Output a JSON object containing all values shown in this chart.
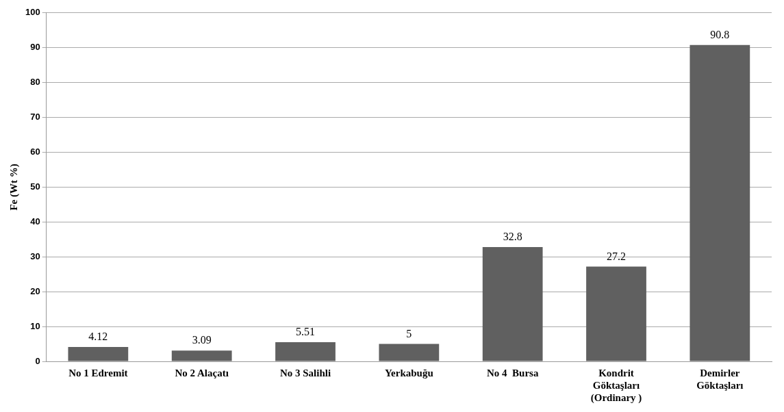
{
  "chart_data": {
    "type": "bar",
    "ylabel": "Fe (Wt %)",
    "categories": [
      "No 1 Edremit",
      "No 2 Alaçatı",
      "No 3 Salihli",
      "Yerkabuğu",
      "No 4  Bursa",
      "Kondrit\nGöktaşları\n(Ordinary )",
      "Demirler\nGöktaşları"
    ],
    "values": [
      4.12,
      3.09,
      5.51,
      5,
      32.8,
      27.2,
      90.8
    ],
    "color": "#606060",
    "ylim": [
      0,
      100
    ],
    "yticks": [
      0,
      10,
      20,
      30,
      40,
      50,
      60,
      70,
      80,
      90,
      100
    ],
    "grid": "y",
    "data_labels": true,
    "legend": false
  }
}
